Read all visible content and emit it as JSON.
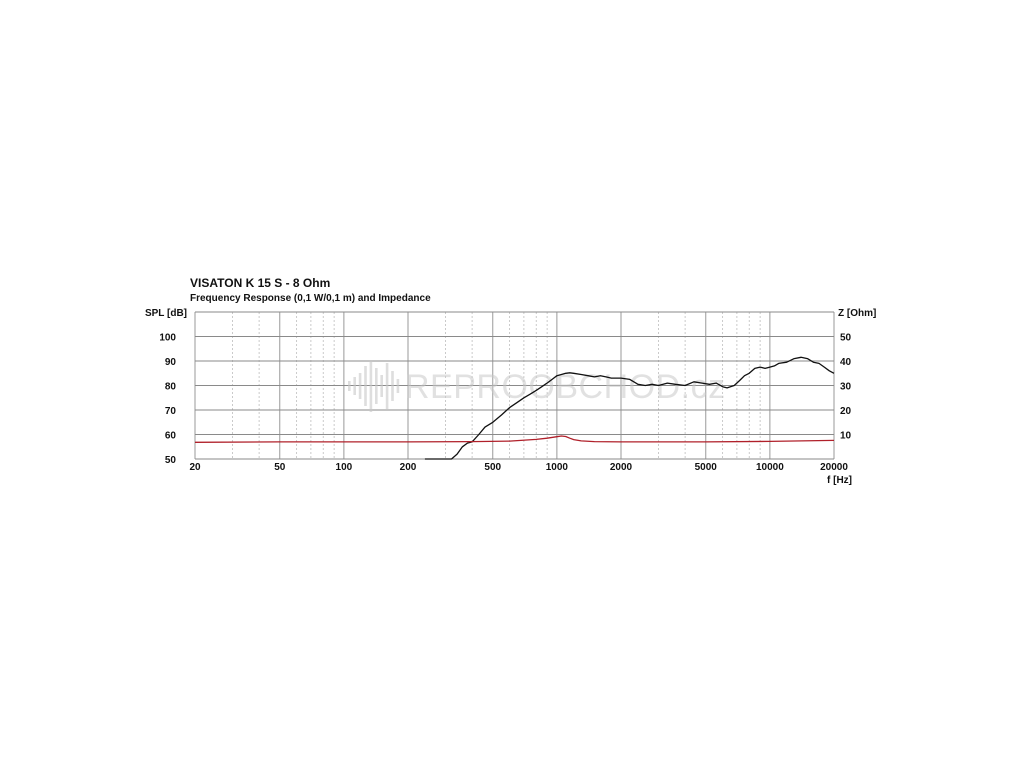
{
  "chart_data": {
    "type": "line",
    "title": "VISATON K 15 S - 8 Ohm",
    "subtitle": "Frequency Response (0,1 W/0,1 m) and Impedance",
    "ylabel": "SPL [dB]",
    "y2label": "Z [Ohm]",
    "xlabel": "f [Hz]",
    "xscale": "log",
    "xlim": [
      20,
      20000
    ],
    "ylim": [
      50,
      110
    ],
    "y2lim": [
      0,
      60
    ],
    "x_ticks": [
      20,
      50,
      100,
      200,
      500,
      1000,
      2000,
      5000,
      10000,
      20000
    ],
    "y_ticks": [
      50,
      60,
      70,
      80,
      90,
      100
    ],
    "y2_ticks": [
      10,
      20,
      30,
      40,
      50
    ],
    "grid": true,
    "series": [
      {
        "axis": "left",
        "color": "#111111",
        "x": [
          240,
          280,
          300,
          320,
          340,
          360,
          380,
          400,
          430,
          460,
          500,
          550,
          600,
          650,
          700,
          750,
          800,
          850,
          900,
          950,
          1000,
          1050,
          1100,
          1150,
          1200,
          1300,
          1400,
          1500,
          1600,
          1700,
          1800,
          2000,
          2200,
          2400,
          2600,
          2800,
          3000,
          3300,
          3600,
          4000,
          4400,
          4800,
          5200,
          5600,
          6000,
          6300,
          6800,
          7200,
          7600,
          8000,
          8500,
          9000,
          9500,
          10000,
          10500,
          11000,
          12000,
          13000,
          14000,
          15000,
          16000,
          17000,
          18000,
          19000,
          20000
        ],
        "y": [
          50,
          50,
          50,
          50,
          52,
          55,
          56.5,
          57,
          60,
          63,
          65,
          68,
          71,
          73,
          75,
          76.5,
          78,
          79.5,
          81,
          82.5,
          84,
          84.5,
          85,
          85.2,
          85,
          84.5,
          84,
          83.5,
          84,
          83.5,
          83,
          83,
          82.5,
          80.5,
          80,
          80.5,
          80,
          81,
          80.5,
          80,
          81.5,
          81,
          80.5,
          81,
          79.5,
          79,
          80,
          82,
          84,
          85,
          87,
          87.5,
          87,
          87.5,
          88,
          89,
          89.5,
          91,
          91.5,
          91,
          89.5,
          89,
          87.5,
          86,
          85
        ]
      },
      {
        "axis": "right",
        "color": "#b0202a",
        "x": [
          20,
          50,
          100,
          200,
          400,
          600,
          800,
          900,
          1000,
          1050,
          1100,
          1150,
          1200,
          1300,
          1500,
          2000,
          5000,
          10000,
          20000
        ],
        "y": [
          6.8,
          7,
          7,
          7,
          7.1,
          7.3,
          8,
          8.5,
          9.1,
          9.4,
          9.2,
          8.5,
          7.9,
          7.4,
          7.1,
          7,
          7,
          7.2,
          7.6
        ]
      }
    ]
  },
  "watermark": "REPROOBCHOD.cz"
}
